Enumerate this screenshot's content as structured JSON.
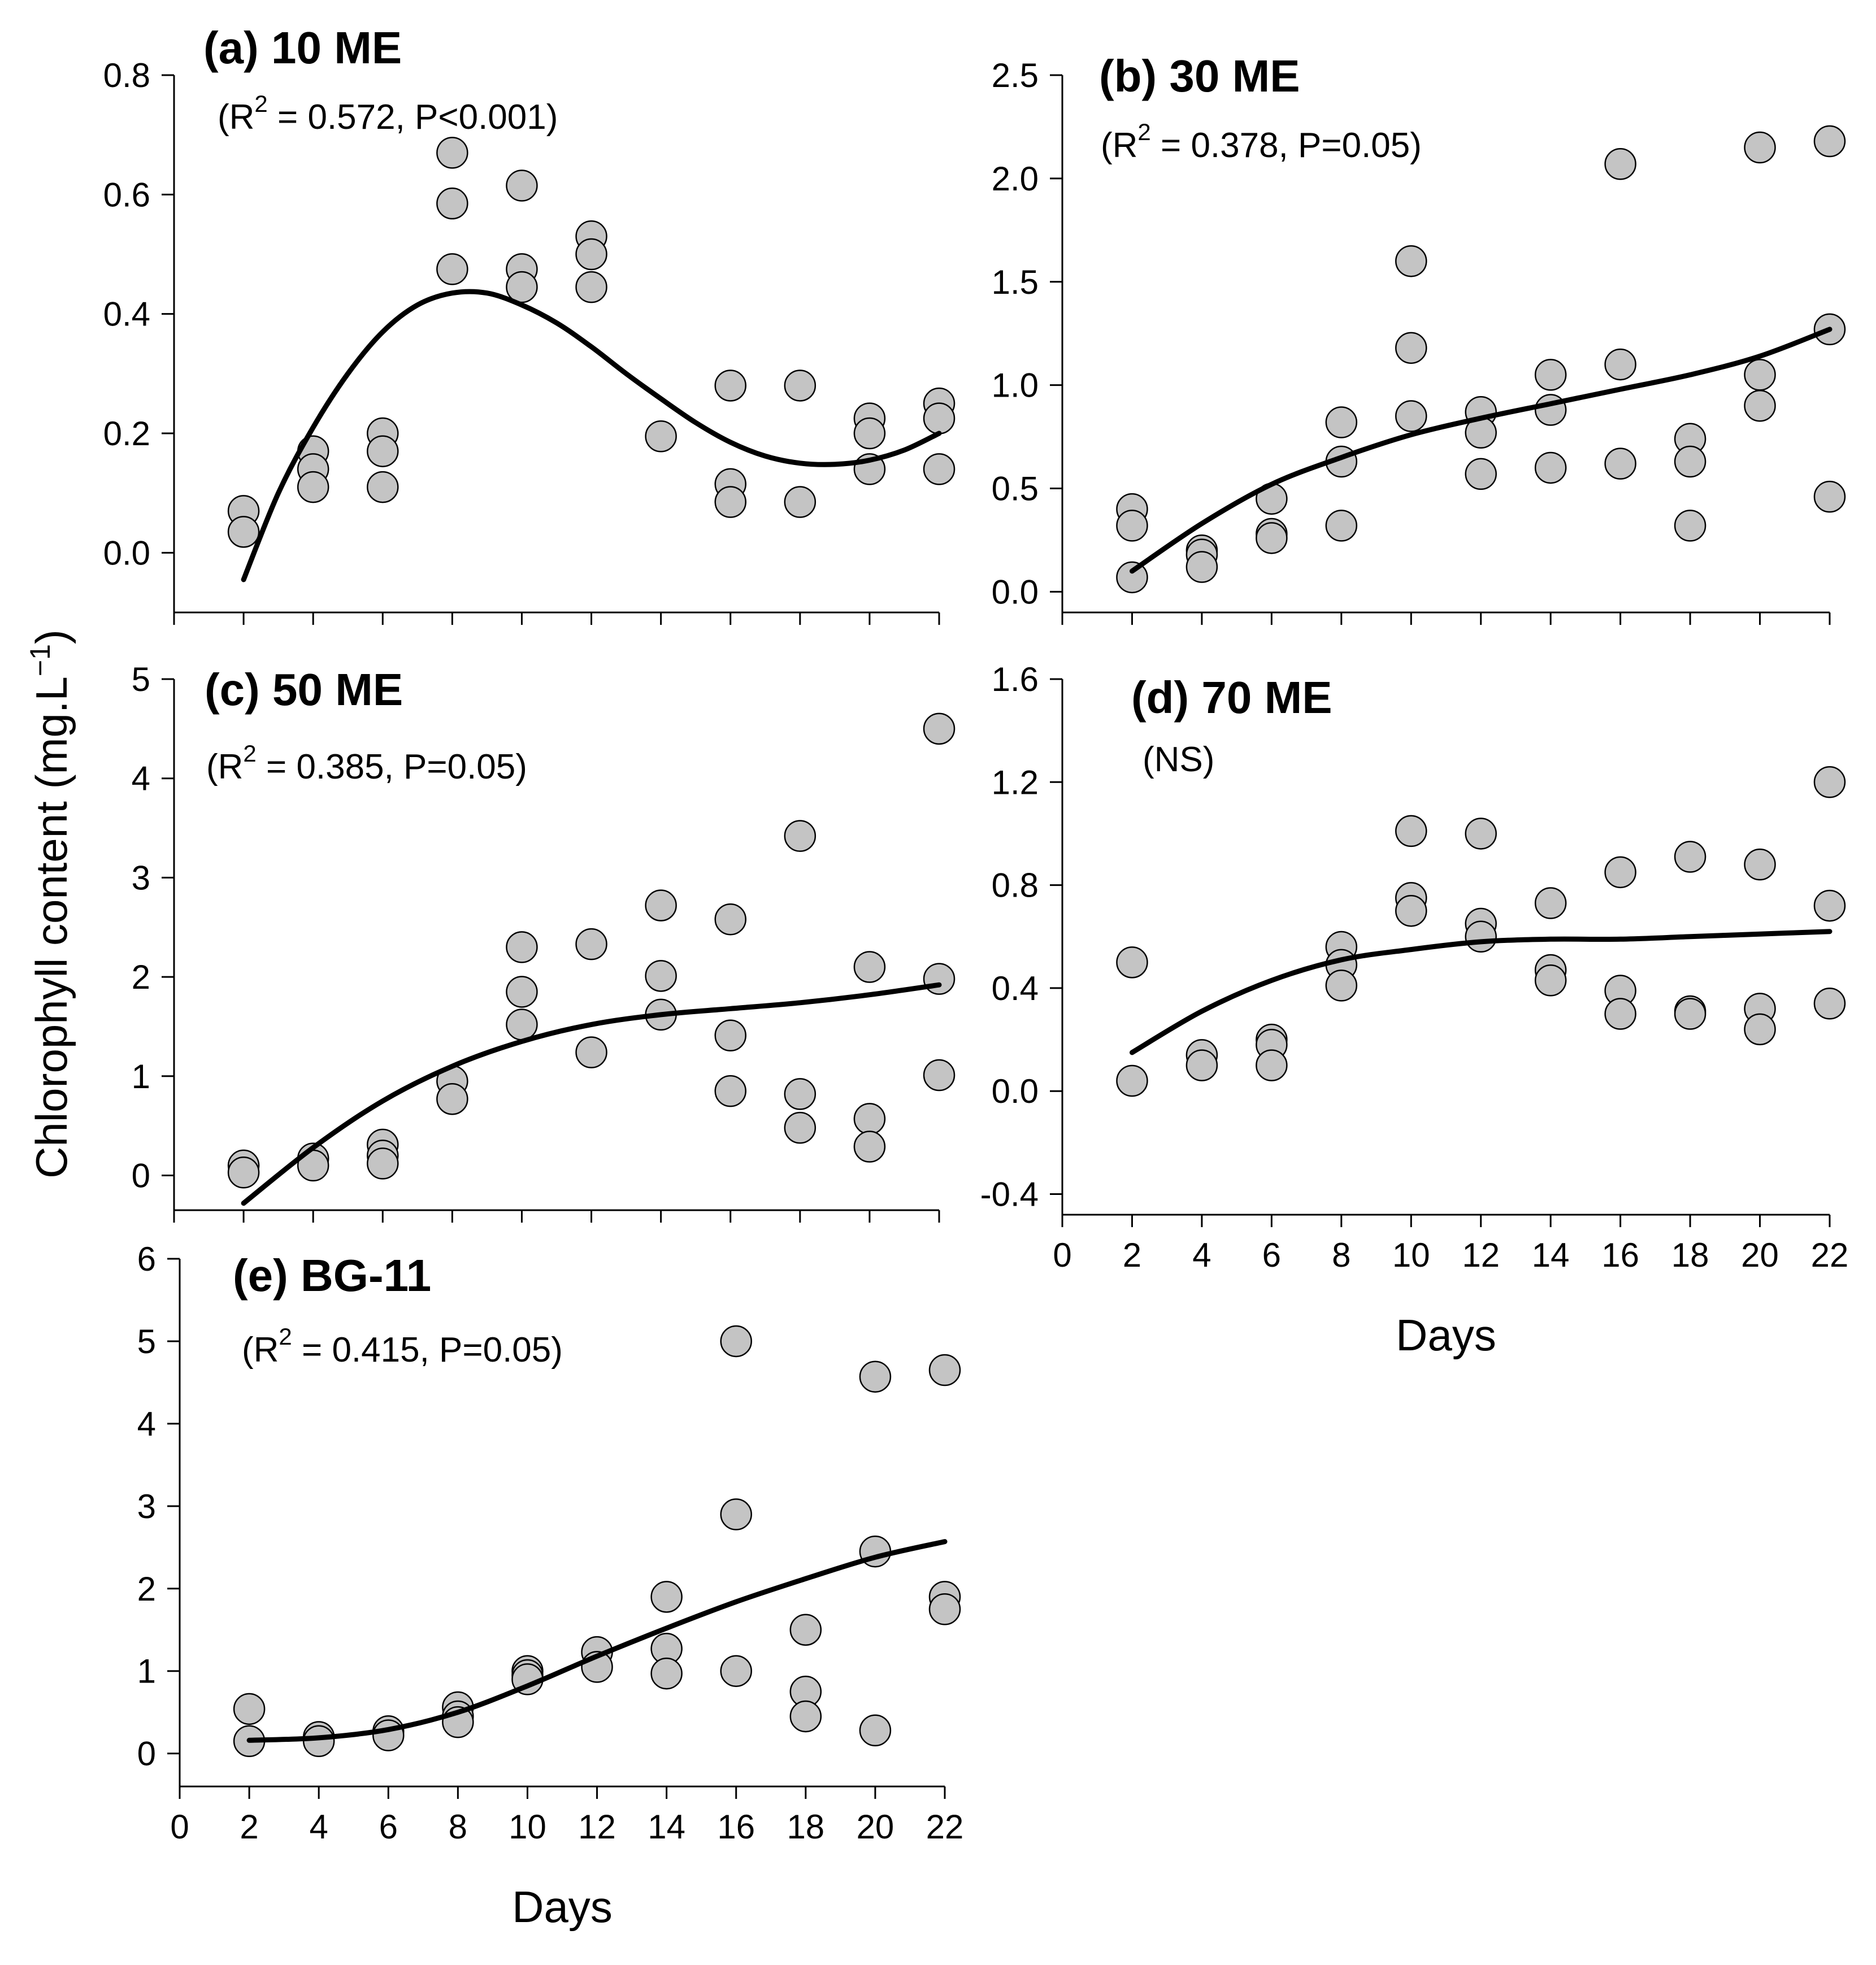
{
  "figure": {
    "ylabel": "Chlorophyll content (mg.L",
    "ylabel_unit_exp": "−1",
    "ylabel_close": ")"
  },
  "chart_data": [
    {
      "id": "a",
      "type": "scatter",
      "title": "(a) 10 ME",
      "stats_pre": "(R",
      "stats_sup": "2",
      "stats_post": " = 0.572, P<0.001)",
      "xlabel": "",
      "ylabel": "Chlorophyll content (mg.L⁻¹)",
      "xlim": [
        0,
        22
      ],
      "ylim": [
        -0.1,
        0.8
      ],
      "xticks": [],
      "yticks": [
        "0.0",
        "0.2",
        "0.4",
        "0.6",
        "0.8"
      ],
      "points": [
        [
          2,
          0.07
        ],
        [
          2,
          0.035
        ],
        [
          4,
          0.17
        ],
        [
          4,
          0.14
        ],
        [
          4,
          0.11
        ],
        [
          6,
          0.2
        ],
        [
          6,
          0.17
        ],
        [
          6,
          0.11
        ],
        [
          8,
          0.67
        ],
        [
          8,
          0.585
        ],
        [
          8,
          0.475
        ],
        [
          10,
          0.615
        ],
        [
          10,
          0.475
        ],
        [
          10,
          0.445
        ],
        [
          12,
          0.53
        ],
        [
          12,
          0.5
        ],
        [
          12,
          0.445
        ],
        [
          14,
          0.195
        ],
        [
          16,
          0.28
        ],
        [
          16,
          0.115
        ],
        [
          16,
          0.085
        ],
        [
          18,
          0.28
        ],
        [
          18,
          0.085
        ],
        [
          20,
          0.225
        ],
        [
          20,
          0.2
        ],
        [
          20,
          0.14
        ],
        [
          22,
          0.25
        ],
        [
          22,
          0.225
        ],
        [
          22,
          0.14
        ]
      ],
      "fit_x": [
        2,
        3,
        4,
        5,
        6,
        7,
        8,
        9,
        10,
        11,
        12,
        13,
        14,
        15,
        16,
        17,
        18,
        19,
        20,
        21,
        22
      ],
      "fit_y": [
        -0.045,
        0.1,
        0.21,
        0.3,
        0.37,
        0.415,
        0.435,
        0.435,
        0.415,
        0.385,
        0.345,
        0.3,
        0.258,
        0.218,
        0.185,
        0.162,
        0.15,
        0.148,
        0.155,
        0.172,
        0.2
      ]
    },
    {
      "id": "b",
      "type": "scatter",
      "title": "(b) 30 ME",
      "stats_pre": "(R",
      "stats_sup": "2",
      "stats_post": " = 0.378, P=0.05)",
      "xlabel": "",
      "xlim": [
        0,
        22
      ],
      "ylim": [
        -0.1,
        2.5
      ],
      "xticks": [],
      "yticks": [
        "0.0",
        "0.5",
        "1.0",
        "1.5",
        "2.0",
        "2.5"
      ],
      "points": [
        [
          2,
          0.4
        ],
        [
          2,
          0.32
        ],
        [
          2,
          0.07
        ],
        [
          4,
          0.2
        ],
        [
          4,
          0.18
        ],
        [
          4,
          0.12
        ],
        [
          6,
          0.45
        ],
        [
          6,
          0.28
        ],
        [
          6,
          0.26
        ],
        [
          8,
          0.82
        ],
        [
          8,
          0.63
        ],
        [
          8,
          0.32
        ],
        [
          10,
          1.6
        ],
        [
          10,
          1.18
        ],
        [
          10,
          0.85
        ],
        [
          12,
          0.87
        ],
        [
          12,
          0.77
        ],
        [
          12,
          0.57
        ],
        [
          14,
          1.05
        ],
        [
          14,
          0.88
        ],
        [
          14,
          0.6
        ],
        [
          16,
          2.07
        ],
        [
          16,
          1.1
        ],
        [
          16,
          0.62
        ],
        [
          18,
          0.74
        ],
        [
          18,
          0.63
        ],
        [
          18,
          0.32
        ],
        [
          20,
          2.15
        ],
        [
          20,
          1.05
        ],
        [
          20,
          0.9
        ],
        [
          22,
          2.18
        ],
        [
          22,
          1.27
        ],
        [
          22,
          0.46
        ]
      ],
      "fit_x": [
        2,
        4,
        6,
        8,
        10,
        12,
        14,
        16,
        18,
        20,
        22
      ],
      "fit_y": [
        0.1,
        0.33,
        0.52,
        0.65,
        0.76,
        0.84,
        0.91,
        0.98,
        1.05,
        1.14,
        1.27
      ]
    },
    {
      "id": "c",
      "type": "scatter",
      "title": "(c) 50 ME",
      "stats_pre": "(R",
      "stats_sup": "2",
      "stats_post": " = 0.385, P=0.05)",
      "xlabel": "",
      "xlim": [
        0,
        22
      ],
      "ylim": [
        -0.35,
        5
      ],
      "xticks": [],
      "yticks": [
        "0",
        "1",
        "2",
        "3",
        "4",
        "5"
      ],
      "points": [
        [
          2,
          0.1
        ],
        [
          2,
          0.03
        ],
        [
          4,
          0.17
        ],
        [
          4,
          0.1
        ],
        [
          6,
          0.31
        ],
        [
          6,
          0.2
        ],
        [
          6,
          0.12
        ],
        [
          8,
          0.95
        ],
        [
          8,
          0.77
        ],
        [
          10,
          2.3
        ],
        [
          10,
          1.85
        ],
        [
          10,
          1.52
        ],
        [
          12,
          2.33
        ],
        [
          12,
          1.24
        ],
        [
          14,
          2.72
        ],
        [
          14,
          2.01
        ],
        [
          14,
          1.62
        ],
        [
          16,
          2.58
        ],
        [
          16,
          1.41
        ],
        [
          16,
          0.85
        ],
        [
          18,
          3.42
        ],
        [
          18,
          0.82
        ],
        [
          18,
          0.48
        ],
        [
          20,
          2.1
        ],
        [
          20,
          0.57
        ],
        [
          20,
          0.29
        ],
        [
          22,
          4.5
        ],
        [
          22,
          1.98
        ],
        [
          22,
          1.01
        ]
      ],
      "fit_x": [
        2,
        4,
        6,
        8,
        10,
        12,
        14,
        16,
        18,
        20,
        22
      ],
      "fit_y": [
        -0.28,
        0.28,
        0.75,
        1.1,
        1.35,
        1.52,
        1.62,
        1.68,
        1.74,
        1.82,
        1.92
      ]
    },
    {
      "id": "d",
      "type": "scatter",
      "title": "(d) 70 ME",
      "stats_pre": "(NS)",
      "stats_sup": "",
      "stats_post": "",
      "xlabel": "Days",
      "xlim": [
        0,
        22
      ],
      "ylim": [
        -0.48,
        1.6
      ],
      "xticks": [
        "0",
        "2",
        "4",
        "6",
        "8",
        "10",
        "12",
        "14",
        "16",
        "18",
        "20",
        "22"
      ],
      "yticks": [
        "-0.4",
        "0.0",
        "0.4",
        "0.8",
        "1.2",
        "1.6"
      ],
      "points": [
        [
          2,
          0.5
        ],
        [
          2,
          0.04
        ],
        [
          4,
          0.14
        ],
        [
          4,
          0.1
        ],
        [
          6,
          0.2
        ],
        [
          6,
          0.18
        ],
        [
          6,
          0.1
        ],
        [
          8,
          0.56
        ],
        [
          8,
          0.49
        ],
        [
          8,
          0.41
        ],
        [
          10,
          1.01
        ],
        [
          10,
          0.75
        ],
        [
          10,
          0.7
        ],
        [
          12,
          1.0
        ],
        [
          12,
          0.65
        ],
        [
          12,
          0.6
        ],
        [
          14,
          0.73
        ],
        [
          14,
          0.47
        ],
        [
          14,
          0.43
        ],
        [
          16,
          0.85
        ],
        [
          16,
          0.39
        ],
        [
          16,
          0.3
        ],
        [
          18,
          0.91
        ],
        [
          18,
          0.31
        ],
        [
          18,
          0.3
        ],
        [
          20,
          0.88
        ],
        [
          20,
          0.32
        ],
        [
          20,
          0.24
        ],
        [
          22,
          1.2
        ],
        [
          22,
          0.72
        ],
        [
          22,
          0.34
        ]
      ],
      "fit_x": [
        2,
        4,
        6,
        8,
        10,
        12,
        14,
        16,
        18,
        20,
        22
      ],
      "fit_y": [
        0.15,
        0.31,
        0.43,
        0.51,
        0.55,
        0.58,
        0.59,
        0.59,
        0.6,
        0.61,
        0.62
      ]
    },
    {
      "id": "e",
      "type": "scatter",
      "title": "(e) BG-11",
      "stats_pre": "(R",
      "stats_sup": "2",
      "stats_post": " = 0.415, P=0.05)",
      "xlabel": "Days",
      "xlim": [
        0,
        22
      ],
      "ylim": [
        -0.4,
        6
      ],
      "xticks": [
        "0",
        "2",
        "4",
        "6",
        "8",
        "10",
        "12",
        "14",
        "16",
        "18",
        "20",
        "22"
      ],
      "yticks": [
        "0",
        "1",
        "2",
        "3",
        "4",
        "5",
        "6"
      ],
      "points": [
        [
          2,
          0.54
        ],
        [
          2,
          0.15
        ],
        [
          4,
          0.2
        ],
        [
          4,
          0.15
        ],
        [
          6,
          0.27
        ],
        [
          6,
          0.22
        ],
        [
          8,
          0.56
        ],
        [
          8,
          0.45
        ],
        [
          8,
          0.38
        ],
        [
          10,
          1.0
        ],
        [
          10,
          0.95
        ],
        [
          10,
          0.9
        ],
        [
          12,
          1.23
        ],
        [
          12,
          1.05
        ],
        [
          14,
          1.9
        ],
        [
          14,
          1.27
        ],
        [
          14,
          0.97
        ],
        [
          16,
          5.0
        ],
        [
          16,
          2.9
        ],
        [
          16,
          1.0
        ],
        [
          18,
          1.5
        ],
        [
          18,
          0.75
        ],
        [
          18,
          0.45
        ],
        [
          20,
          4.57
        ],
        [
          20,
          2.45
        ],
        [
          20,
          0.28
        ],
        [
          22,
          4.65
        ],
        [
          22,
          1.9
        ],
        [
          22,
          1.75
        ]
      ],
      "fit_x": [
        2,
        4,
        6,
        8,
        10,
        12,
        14,
        16,
        18,
        20,
        22
      ],
      "fit_y": [
        0.16,
        0.19,
        0.29,
        0.5,
        0.82,
        1.18,
        1.52,
        1.84,
        2.12,
        2.38,
        2.57
      ]
    }
  ]
}
